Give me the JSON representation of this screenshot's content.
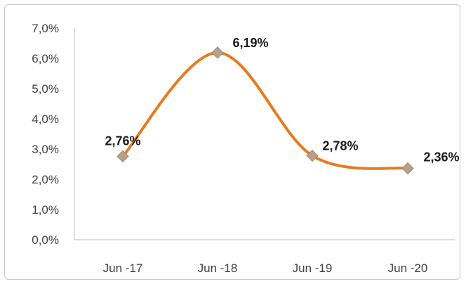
{
  "chart_data": {
    "type": "line",
    "categories": [
      "Jun -17",
      "Jun -18",
      "Jun -19",
      "Jun -20"
    ],
    "series": [
      {
        "values": [
          2.76,
          6.19,
          2.78,
          2.36
        ],
        "data_labels": [
          "2,76%",
          "6,19%",
          "2,78%",
          "2,36%"
        ],
        "line_color": "#E87A1E",
        "marker": "diamond",
        "marker_color": "#B8A08A",
        "smooth": true
      }
    ],
    "ylim": [
      0,
      7
    ],
    "yticks": [
      0,
      1,
      2,
      3,
      4,
      5,
      6,
      7
    ],
    "ytick_labels": [
      "0,0%",
      "1,0%",
      "2,0%",
      "3,0%",
      "4,0%",
      "5,0%",
      "6,0%",
      "7,0%"
    ],
    "grid": false,
    "legend": "none"
  },
  "colors": {
    "axis": "#bfbfbf",
    "text": "#404040",
    "label": "#1a1a1a",
    "frame": "#c8c8c8"
  }
}
